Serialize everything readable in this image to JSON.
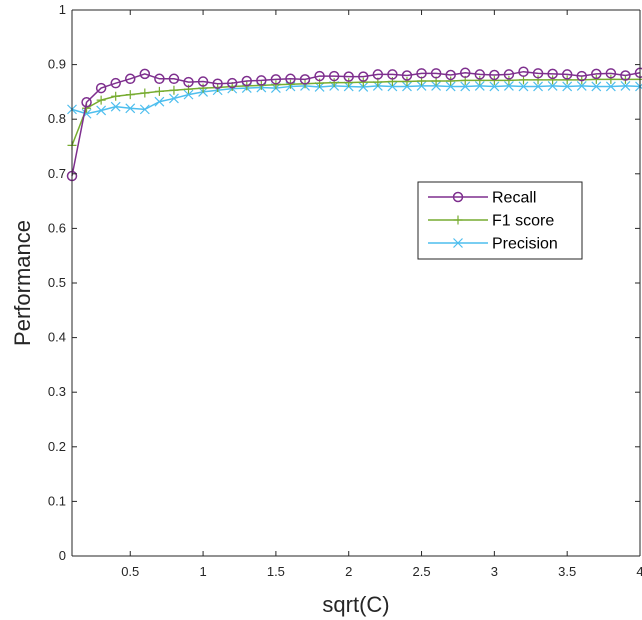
{
  "chart_data": {
    "type": "line",
    "title": "",
    "xlabel": "sqrt(C)",
    "ylabel": "Performance",
    "xlim": [
      0.1,
      4
    ],
    "ylim": [
      0,
      1
    ],
    "x_ticks": [
      "0.5",
      "1",
      "1.5",
      "2",
      "2.5",
      "3",
      "3.5",
      "4"
    ],
    "x_tick_values": [
      0.5,
      1,
      1.5,
      2,
      2.5,
      3,
      3.5,
      4
    ],
    "y_ticks": [
      "0",
      "0.1",
      "0.2",
      "0.3",
      "0.4",
      "0.5",
      "0.6",
      "0.7",
      "0.8",
      "0.9",
      "1"
    ],
    "y_tick_values": [
      0,
      0.1,
      0.2,
      0.3,
      0.4,
      0.5,
      0.6,
      0.7,
      0.8,
      0.9,
      1
    ],
    "grid": false,
    "legend_position": "right-center",
    "x": [
      0.1,
      0.2,
      0.3,
      0.4,
      0.5,
      0.6,
      0.7,
      0.8,
      0.9,
      1.0,
      1.1,
      1.2,
      1.3,
      1.4,
      1.5,
      1.6,
      1.7,
      1.8,
      1.9,
      2.0,
      2.1,
      2.2,
      2.3,
      2.4,
      2.5,
      2.6,
      2.7,
      2.8,
      2.9,
      3.0,
      3.1,
      3.2,
      3.3,
      3.4,
      3.5,
      3.6,
      3.7,
      3.8,
      3.9,
      4.0
    ],
    "series": [
      {
        "name": "Recall",
        "color": "#7E2F8E",
        "marker": "circle",
        "values": [
          0.696,
          0.831,
          0.857,
          0.866,
          0.874,
          0.883,
          0.874,
          0.874,
          0.868,
          0.869,
          0.865,
          0.866,
          0.87,
          0.871,
          0.873,
          0.874,
          0.873,
          0.879,
          0.879,
          0.878,
          0.878,
          0.882,
          0.882,
          0.88,
          0.884,
          0.884,
          0.881,
          0.885,
          0.882,
          0.881,
          0.882,
          0.887,
          0.884,
          0.883,
          0.882,
          0.879,
          0.883,
          0.884,
          0.88,
          0.885
        ]
      },
      {
        "name": "F1 score",
        "color": "#77AC30",
        "marker": "plus",
        "values": [
          0.752,
          0.82,
          0.835,
          0.842,
          0.845,
          0.848,
          0.851,
          0.853,
          0.855,
          0.857,
          0.858,
          0.86,
          0.861,
          0.862,
          0.863,
          0.864,
          0.865,
          0.866,
          0.867,
          0.867,
          0.868,
          0.868,
          0.869,
          0.869,
          0.87,
          0.87,
          0.87,
          0.871,
          0.871,
          0.871,
          0.871,
          0.872,
          0.872,
          0.872,
          0.872,
          0.872,
          0.873,
          0.873,
          0.873,
          0.873
        ]
      },
      {
        "name": "Precision",
        "color": "#4DBEEE",
        "marker": "x",
        "values": [
          0.818,
          0.81,
          0.816,
          0.823,
          0.82,
          0.818,
          0.832,
          0.838,
          0.845,
          0.85,
          0.853,
          0.856,
          0.857,
          0.858,
          0.857,
          0.86,
          0.861,
          0.859,
          0.861,
          0.86,
          0.859,
          0.861,
          0.86,
          0.86,
          0.861,
          0.861,
          0.86,
          0.86,
          0.861,
          0.86,
          0.861,
          0.86,
          0.86,
          0.861,
          0.86,
          0.861,
          0.86,
          0.86,
          0.861,
          0.86
        ]
      }
    ]
  }
}
